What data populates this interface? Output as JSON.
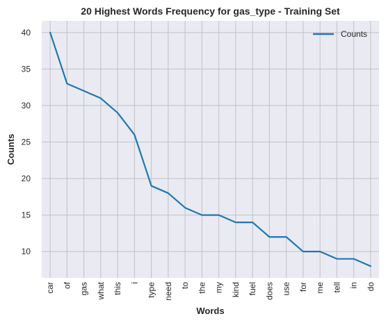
{
  "chart_data": {
    "type": "line",
    "title": "20 Highest Words Frequency for gas_type - Training Set",
    "xlabel": "Words",
    "ylabel": "Counts",
    "categories": [
      "car",
      "of",
      "gas",
      "what",
      "this",
      "i",
      "type",
      "need",
      "to",
      "the",
      "my",
      "kind",
      "fuel",
      "does",
      "use",
      "for",
      "me",
      "tell",
      "in",
      "do"
    ],
    "series": [
      {
        "name": "Counts",
        "values": [
          40,
          33,
          32,
          31,
          29,
          26,
          19,
          18,
          16,
          15,
          15,
          14,
          14,
          12,
          12,
          10,
          10,
          9,
          9,
          8
        ],
        "color": "#1f77b4"
      }
    ],
    "ylim": [
      6.4,
      41.6
    ],
    "yticks": [
      10,
      15,
      20,
      25,
      30,
      35,
      40
    ],
    "grid": true,
    "legend_position": "top-right",
    "background_color": "#eaeaf2",
    "grid_color": "#c0c0c8"
  }
}
